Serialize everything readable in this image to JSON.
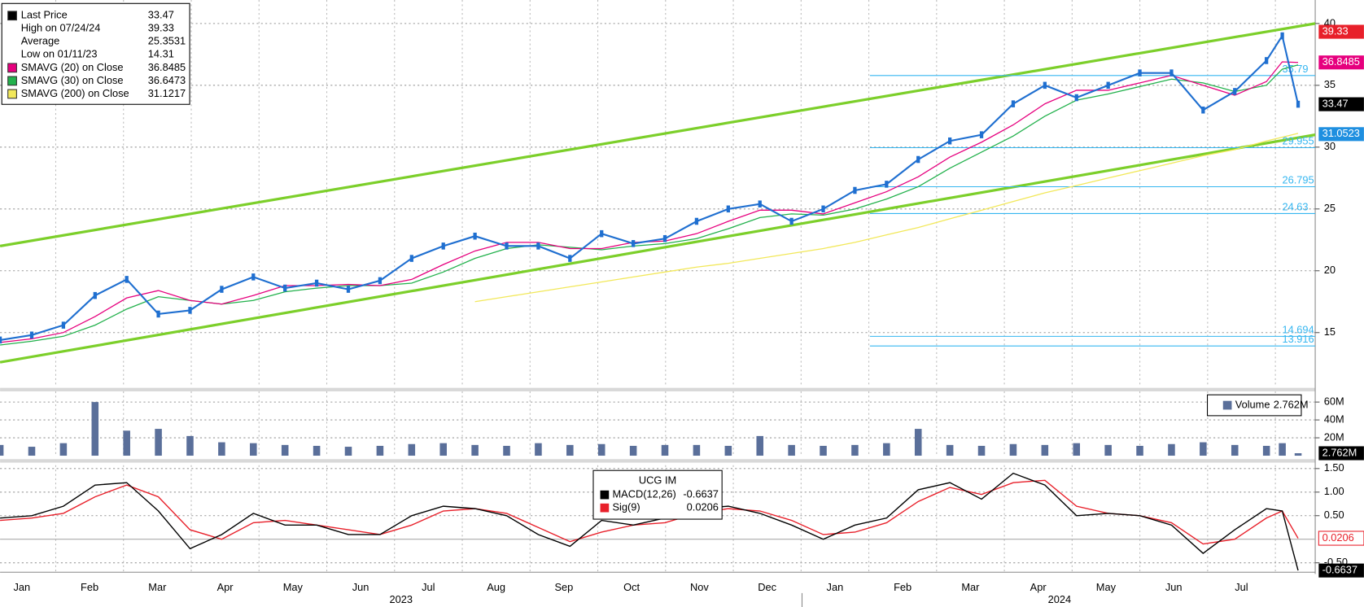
{
  "chart_data": [
    {
      "type": "line",
      "x": [
        0,
        2,
        4,
        6,
        8,
        10,
        12,
        14,
        16,
        18,
        20,
        22,
        24,
        26,
        28,
        30,
        32,
        34,
        36,
        38,
        40,
        42,
        44,
        46,
        48,
        50,
        52,
        54,
        56,
        58,
        60,
        62,
        64,
        66,
        68,
        70,
        72,
        74,
        76,
        78,
        80,
        81,
        82
      ],
      "xlim": [
        0,
        83.08
      ],
      "ylim": [
        10.6,
        41.9
      ],
      "yticks": [
        15,
        20,
        25,
        30,
        35,
        40
      ],
      "grid": true,
      "series": [
        {
          "name": "Last Price",
          "color": "#1f6fd0",
          "values": [
            14.4,
            14.8,
            15.6,
            18.0,
            19.3,
            16.5,
            16.8,
            18.5,
            19.5,
            18.6,
            19.0,
            18.5,
            19.2,
            21.0,
            22.0,
            22.8,
            22.0,
            22.0,
            21.0,
            23.0,
            22.2,
            22.6,
            24.0,
            25.0,
            25.4,
            24.0,
            25.0,
            26.5,
            27.0,
            29.0,
            30.5,
            31.0,
            33.5,
            35.0,
            34.0,
            35.0,
            36.0,
            36.0,
            33.0,
            34.5,
            37.0,
            39.0,
            33.47
          ]
        },
        {
          "name": "SMAVG (20)  on Close",
          "color": "#e6007e",
          "values": [
            14.2,
            14.5,
            15.0,
            16.3,
            17.8,
            18.4,
            17.6,
            17.3,
            18.0,
            18.8,
            18.8,
            18.9,
            18.8,
            19.3,
            20.5,
            21.6,
            22.3,
            22.3,
            21.8,
            21.8,
            22.3,
            22.4,
            23.0,
            24.0,
            24.9,
            24.9,
            24.6,
            25.5,
            26.4,
            27.6,
            29.2,
            30.4,
            31.8,
            33.5,
            34.6,
            34.6,
            35.2,
            35.8,
            35.0,
            34.2,
            35.3,
            36.9,
            36.85
          ]
        },
        {
          "name": "SMAVG (30)  on Close",
          "color": "#22b14c",
          "values": [
            14.0,
            14.3,
            14.7,
            15.6,
            16.9,
            17.9,
            17.6,
            17.3,
            17.6,
            18.3,
            18.6,
            18.8,
            18.8,
            19.0,
            19.9,
            21.0,
            21.8,
            22.1,
            21.9,
            21.7,
            22.0,
            22.2,
            22.6,
            23.4,
            24.3,
            24.6,
            24.5,
            25.0,
            25.8,
            26.8,
            28.3,
            29.6,
            30.9,
            32.5,
            33.8,
            34.3,
            34.9,
            35.5,
            35.2,
            34.5,
            35.0,
            36.3,
            36.65
          ]
        },
        {
          "name": "SMAVG (200)  on Close",
          "color": "#f2e85a",
          "values": [
            null,
            null,
            null,
            null,
            null,
            null,
            null,
            null,
            null,
            null,
            null,
            null,
            null,
            null,
            null,
            17.5,
            17.9,
            18.3,
            18.7,
            19.1,
            19.5,
            19.9,
            20.3,
            20.6,
            21.0,
            21.4,
            21.8,
            22.3,
            22.9,
            23.5,
            24.2,
            24.9,
            25.6,
            26.3,
            26.9,
            27.5,
            28.1,
            28.7,
            29.3,
            29.8,
            30.5,
            30.8,
            31.12
          ]
        }
      ],
      "stats": [
        {
          "name": "Last Price",
          "value": 33.47,
          "color": "#000000"
        },
        {
          "name": "High on 07/24/24",
          "value": 39.33,
          "color": "#ffffff"
        },
        {
          "name": "Average",
          "value": 25.3531,
          "color": "#ffffff"
        },
        {
          "name": "Low on 01/11/23",
          "value": 14.31,
          "color": "#ffffff"
        },
        {
          "name": "SMAVG (20)  on Close",
          "value": 36.8485,
          "color": "#e6007e"
        },
        {
          "name": "SMAVG (30)  on Close",
          "value": 36.6473,
          "color": "#22b14c"
        },
        {
          "name": "SMAVG (200)  on Close",
          "value": 31.1217,
          "color": "#f2e85a"
        }
      ],
      "trendlines": [
        [
          22.0,
          40.0
        ],
        [
          12.6,
          31.0
        ]
      ],
      "levels": [
        35.79,
        29.955,
        26.795,
        24.63,
        14.694,
        13.916
      ],
      "flags": [
        {
          "value": 39.33,
          "color": "#e8202a"
        },
        {
          "value": 36.8485,
          "color": "#e6007e"
        },
        {
          "value": 33.47,
          "color": "#000000"
        },
        {
          "value": 31.0523,
          "color": "#1f8fe0"
        }
      ]
    },
    {
      "type": "bar",
      "x": [
        0,
        2,
        4,
        6,
        8,
        10,
        12,
        14,
        16,
        18,
        20,
        22,
        24,
        26,
        28,
        30,
        32,
        34,
        36,
        38,
        40,
        42,
        44,
        46,
        48,
        50,
        52,
        54,
        56,
        58,
        60,
        62,
        64,
        66,
        68,
        70,
        72,
        74,
        76,
        78,
        80,
        81,
        82
      ],
      "xlim": [
        0,
        83.08
      ],
      "ylim": [
        0,
        72
      ],
      "yticks": [
        {
          "value": 20,
          "label": "20M"
        },
        {
          "value": 40,
          "label": "40M"
        },
        {
          "value": 60,
          "label": "60M"
        }
      ],
      "grid": true,
      "series": [
        {
          "name": "Volume",
          "color": "#5a6f9a",
          "values": [
            12,
            10,
            14,
            60,
            28,
            30,
            22,
            15,
            14,
            12,
            11,
            10,
            11,
            13,
            14,
            12,
            11,
            14,
            12,
            13,
            11,
            12,
            12,
            11,
            22,
            12,
            11,
            12,
            14,
            30,
            12,
            11,
            13,
            12,
            14,
            12,
            11,
            13,
            15,
            12,
            11,
            14,
            2.762
          ]
        }
      ],
      "flags": [
        {
          "value": 2.762,
          "label": "2.762M",
          "color": "#000000"
        }
      ]
    },
    {
      "type": "line",
      "title": "UCG IM",
      "x": [
        0,
        2,
        4,
        6,
        8,
        10,
        12,
        14,
        16,
        18,
        20,
        22,
        24,
        26,
        28,
        30,
        32,
        34,
        36,
        38,
        40,
        42,
        44,
        46,
        48,
        50,
        52,
        54,
        56,
        58,
        60,
        62,
        64,
        66,
        68,
        70,
        72,
        74,
        76,
        78,
        80,
        81,
        82
      ],
      "xlim": [
        0,
        83.08
      ],
      "ylim": [
        -0.7,
        1.57
      ],
      "yticks": [
        {
          "value": 1.5,
          "label": "1.50"
        },
        {
          "value": 1.0,
          "label": "1.00"
        },
        {
          "value": 0.5,
          "label": "0.50"
        },
        {
          "value": -0.5,
          "label": "-0.50"
        }
      ],
      "grid": true,
      "series": [
        {
          "name": "MACD(12,26)",
          "color": "#000000",
          "last": -0.6637,
          "values": [
            0.45,
            0.5,
            0.7,
            1.15,
            1.2,
            0.6,
            -0.2,
            0.1,
            0.55,
            0.3,
            0.3,
            0.1,
            0.1,
            0.5,
            0.7,
            0.65,
            0.5,
            0.1,
            -0.15,
            0.4,
            0.3,
            0.45,
            0.65,
            0.7,
            0.55,
            0.3,
            0.0,
            0.3,
            0.45,
            1.05,
            1.2,
            0.85,
            1.4,
            1.15,
            0.5,
            0.55,
            0.5,
            0.3,
            -0.3,
            0.2,
            0.65,
            0.6,
            -0.6637
          ]
        },
        {
          "name": "Sig(9)",
          "color": "#e8202a",
          "last": 0.0206,
          "values": [
            0.4,
            0.45,
            0.55,
            0.9,
            1.15,
            0.9,
            0.2,
            0.0,
            0.35,
            0.4,
            0.3,
            0.2,
            0.1,
            0.3,
            0.6,
            0.65,
            0.55,
            0.25,
            -0.05,
            0.15,
            0.3,
            0.35,
            0.55,
            0.65,
            0.6,
            0.4,
            0.1,
            0.15,
            0.35,
            0.8,
            1.1,
            0.95,
            1.2,
            1.25,
            0.7,
            0.55,
            0.5,
            0.35,
            -0.1,
            0.0,
            0.45,
            0.6,
            0.0206
          ]
        }
      ],
      "flags": [
        {
          "value": 0.0206,
          "color": "#e8202a"
        },
        {
          "value": -0.6637,
          "color": "#000000"
        }
      ],
      "categories": [
        "Jan",
        "Feb",
        "Mar",
        "Apr",
        "May",
        "Jun",
        "Jul",
        "Aug",
        "Sep",
        "Oct",
        "Nov",
        "Dec",
        "Jan",
        "Feb",
        "Mar",
        "Apr",
        "May",
        "Jun",
        "Jul"
      ],
      "years": [
        "2023",
        "2024"
      ]
    }
  ]
}
